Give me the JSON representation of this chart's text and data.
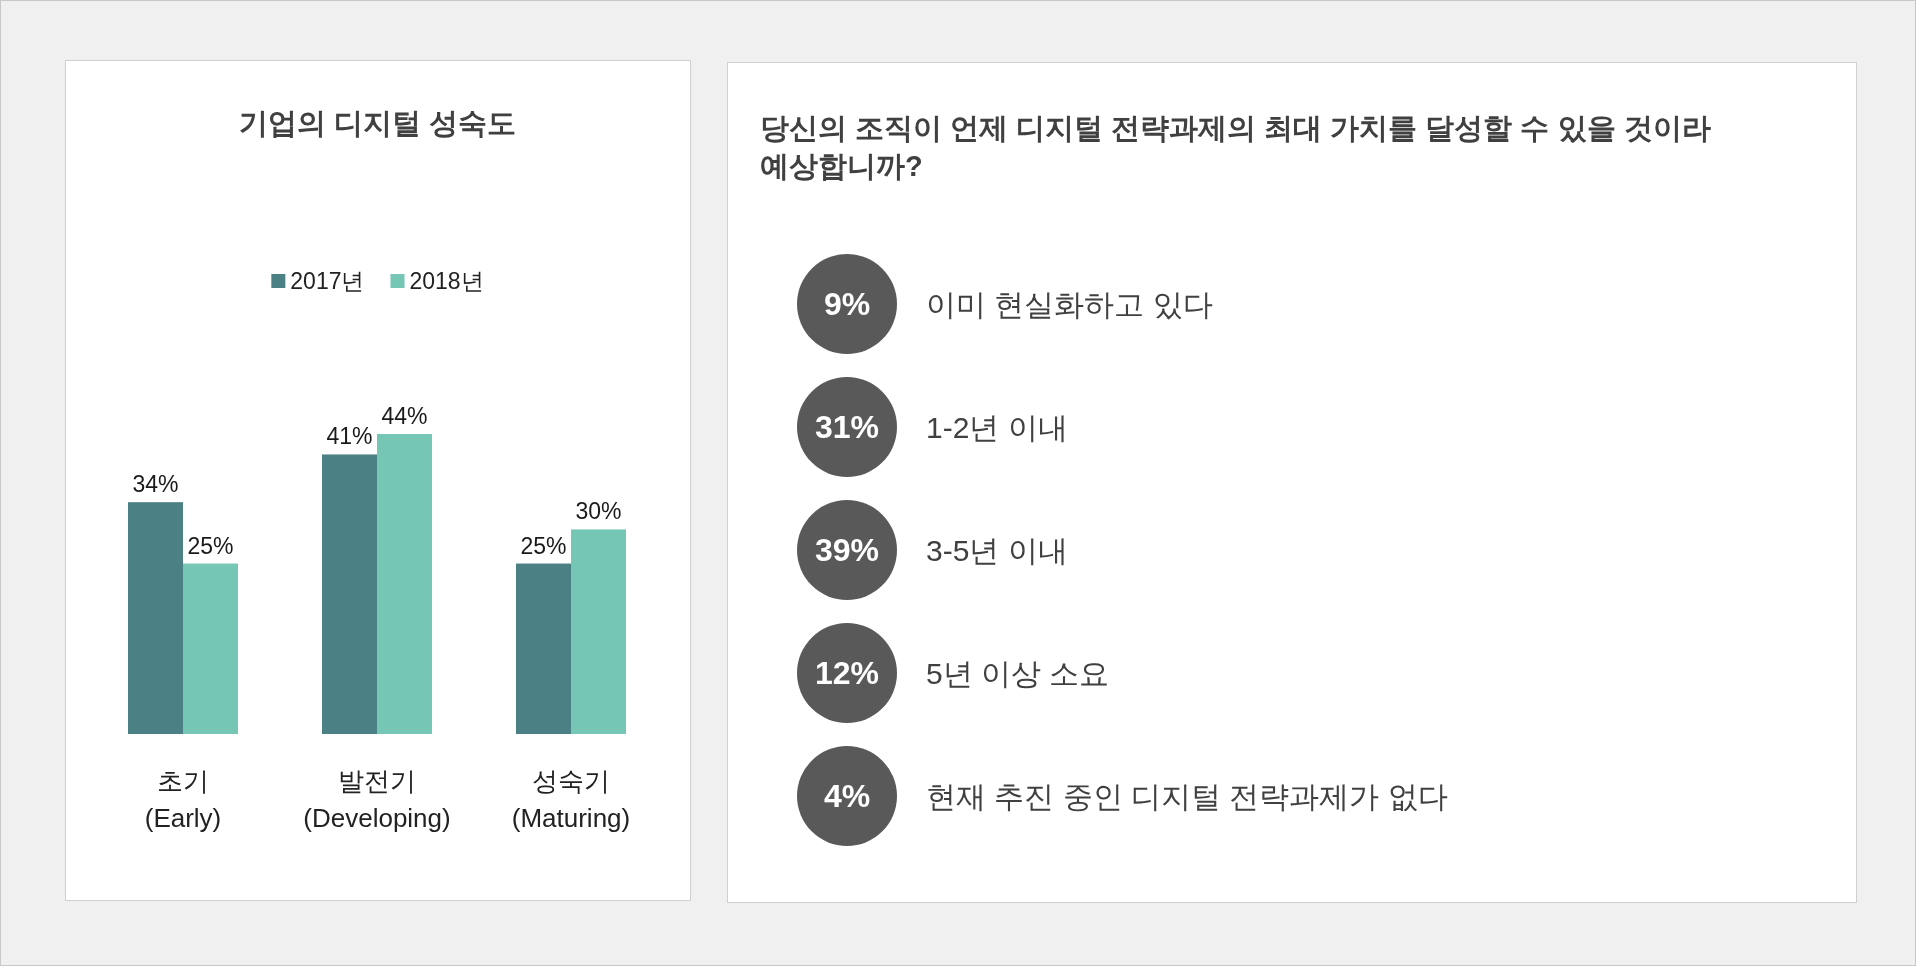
{
  "chart_data": [
    {
      "type": "bar",
      "title": "기업의 디지털 성숙도",
      "categories": [
        "초기\n(Early)",
        "발전기\n(Developing)",
        "성숙기\n(Maturing)"
      ],
      "series": [
        {
          "name": "2017년",
          "color": "#4b8085",
          "values": [
            34,
            41,
            25
          ],
          "value_labels": [
            "34%",
            "41%",
            "25%"
          ]
        },
        {
          "name": "2018년",
          "color": "#75c6b5",
          "values": [
            25,
            44,
            30
          ],
          "value_labels": [
            "25%",
            "44%",
            "30%"
          ]
        }
      ],
      "legend": "top"
    },
    {
      "type": "other",
      "title": "당신의 조직이 언제 디지털 전략과제의 최대 가치를 달성할 수 있을 것이라 예상합니까?",
      "categories": [
        "이미 현실화하고 있다",
        "1-2년 이내",
        "3-5년 이내",
        "5년 이상 소요",
        "현재 추진 중인 디지털 전략과제가 없다"
      ],
      "values": [
        9,
        31,
        39,
        12,
        4
      ],
      "value_labels": [
        "9%",
        "31%",
        "39%",
        "12%",
        "4%"
      ],
      "color": "#595959"
    }
  ]
}
